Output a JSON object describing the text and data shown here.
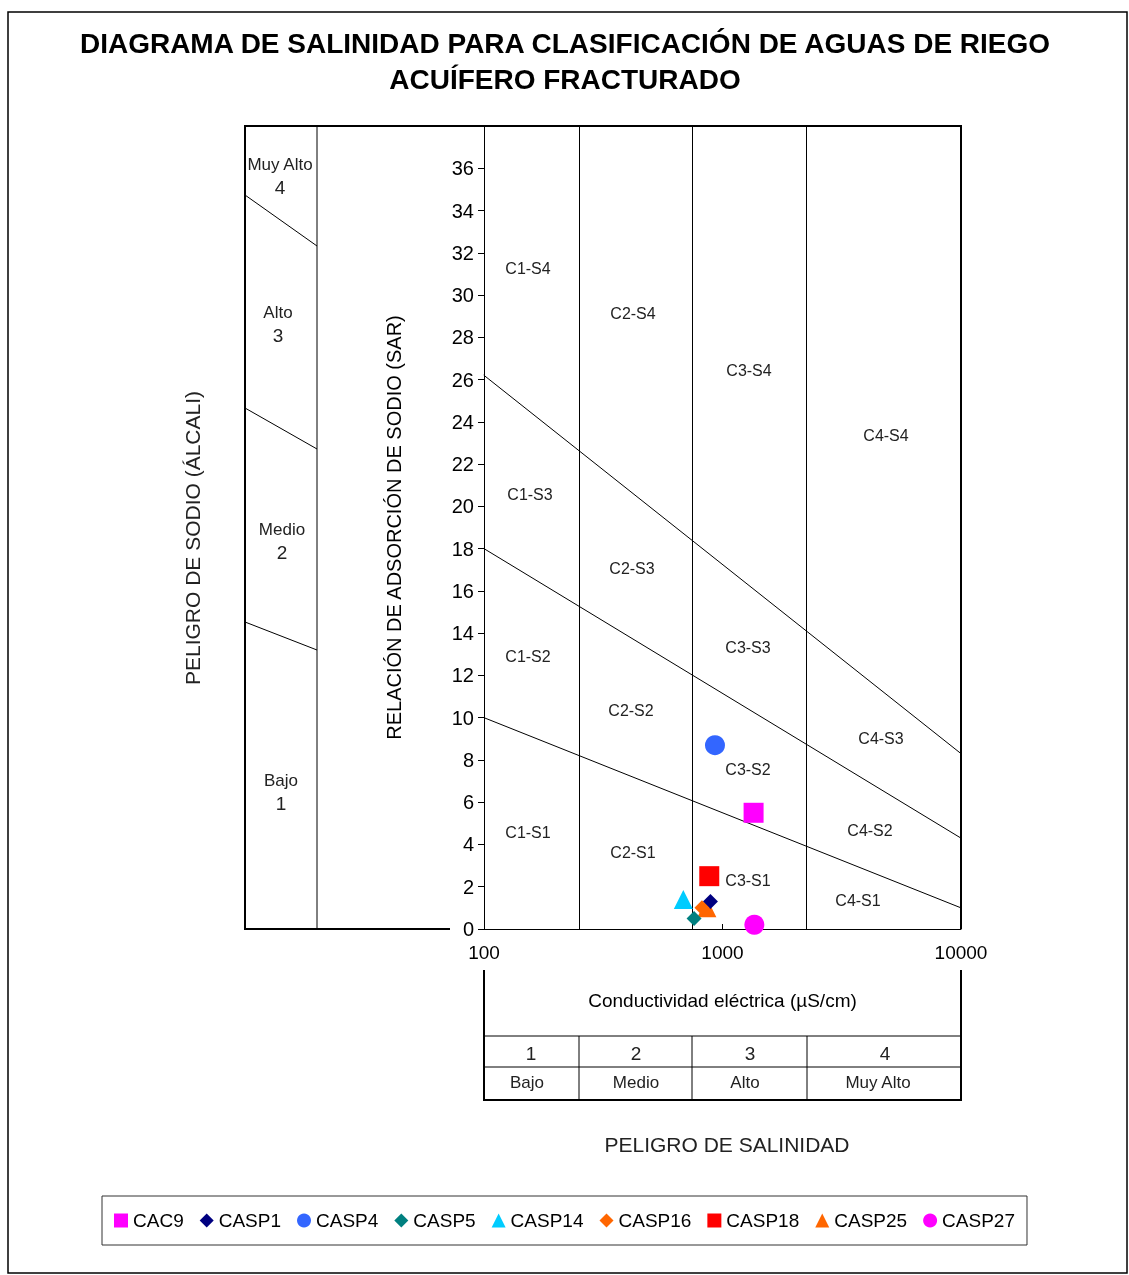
{
  "chart_data": {
    "type": "scatter",
    "title": "DIAGRAMA DE SALINIDAD PARA CLASIFICACIÓN DE AGUAS DE RIEGO ACUÍFERO FRACTURADO",
    "xlabel": "Conductividad eléctrica (µS/cm)",
    "ylabel": "RELACIÓN DE ADSORCIÓN DE SODIO (SAR)",
    "log": "x",
    "xlim": [
      100,
      10000
    ],
    "xticks": [
      100,
      1000,
      10000
    ],
    "ylim": [
      0,
      38
    ],
    "yticks": [
      0,
      2,
      4,
      6,
      8,
      10,
      12,
      14,
      16,
      18,
      20,
      22,
      24,
      26,
      28,
      30,
      32,
      34,
      36
    ],
    "grid": false,
    "legend": "bottom",
    "series": [
      {
        "name": "CAC9",
        "color": "#ff00ff",
        "marker": "square",
        "x": [
          1350
        ],
        "values": [
          5.5
        ]
      },
      {
        "name": "CASP1",
        "color": "#000080",
        "marker": "diamond",
        "x": [
          890
        ],
        "values": [
          1.3
        ]
      },
      {
        "name": "CASP4",
        "color": "#3366ff",
        "marker": "circle",
        "x": [
          930
        ],
        "values": [
          8.7
        ]
      },
      {
        "name": "CASP5",
        "color": "#008080",
        "marker": "diamond",
        "x": [
          760
        ],
        "values": [
          0.5
        ]
      },
      {
        "name": "CASP14",
        "color": "#00ccff",
        "marker": "triangle",
        "x": [
          685
        ],
        "values": [
          1.4
        ]
      },
      {
        "name": "CASP16",
        "color": "#ff6600",
        "marker": "diamond",
        "x": [
          820
        ],
        "values": [
          1.0
        ]
      },
      {
        "name": "CASP18",
        "color": "#ff0000",
        "marker": "square",
        "x": [
          880
        ],
        "values": [
          2.5
        ]
      },
      {
        "name": "CASP25",
        "color": "#ff6600",
        "marker": "triangle",
        "x": [
          860
        ],
        "values": [
          1.0
        ]
      },
      {
        "name": "CASP27",
        "color": "#ff00ff",
        "marker": "circle",
        "x": [
          1360
        ],
        "values": [
          0.2
        ]
      },
      {
        "type": "line",
        "color": "#000000",
        "marker": "none",
        "x": [
          100,
          10000
        ],
        "values": [
          26.2,
          8.3
        ]
      },
      {
        "type": "line",
        "color": "#000000",
        "marker": "none",
        "x": [
          100,
          10000
        ],
        "values": [
          18,
          4.3
        ]
      },
      {
        "type": "line",
        "color": "#000000",
        "marker": "none",
        "x": [
          100,
          10000
        ],
        "values": [
          10,
          1.0
        ]
      }
    ],
    "ref_lines": [
      {
        "axis": "x",
        "value": 250,
        "color": "#000000"
      },
      {
        "axis": "x",
        "value": 750,
        "color": "#000000"
      },
      {
        "axis": "x",
        "value": 2250,
        "color": "#000000"
      }
    ],
    "annotations": [
      "PELIGRO DE SODIO (ÁLCALI)",
      "PELIGRO DE SALINIDAD",
      "Muy Alto",
      "4",
      "Alto",
      "3",
      "Medio",
      "2",
      "Bajo",
      "1",
      "1",
      "2",
      "3",
      "4",
      "Bajo",
      "Medio",
      "Alto",
      "Muy Alto",
      "C1-S4",
      "C2-S4",
      "C3-S4",
      "C4-S4",
      "C1-S3",
      "C2-S3",
      "C3-S3",
      "C4-S3",
      "C1-S2",
      "C2-S2",
      "C3-S2",
      "C4-S2",
      "C1-S1",
      "C2-S1",
      "C3-S1",
      "C4-S1"
    ]
  }
}
